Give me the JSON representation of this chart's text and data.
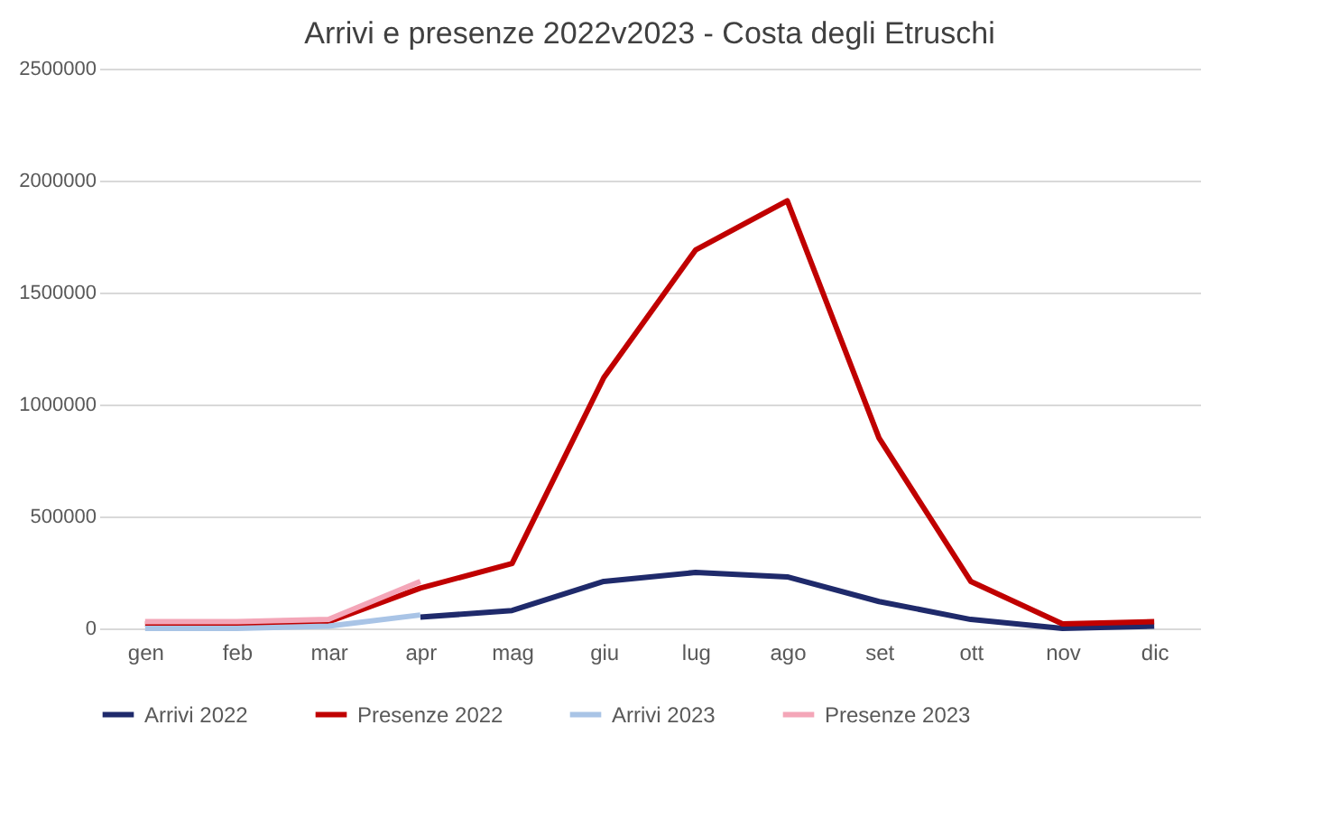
{
  "chart_data": {
    "type": "line",
    "title": "Arrivi e presenze 2022v2023 -  Costa degli Etruschi",
    "categories": [
      "gen",
      "feb",
      "mar",
      "apr",
      "mag",
      "giu",
      "lug",
      "ago",
      "set",
      "ott",
      "nov",
      "dic"
    ],
    "series": [
      {
        "name": "Arrivi 2022",
        "color": "#1f2a6b",
        "values": [
          null,
          null,
          null,
          50000,
          80000,
          210000,
          250000,
          230000,
          120000,
          40000,
          0,
          10000
        ]
      },
      {
        "name": "Presenze 2022",
        "color": "#c00000",
        "values": [
          20000,
          20000,
          30000,
          180000,
          290000,
          1120000,
          1690000,
          1910000,
          850000,
          210000,
          20000,
          30000
        ]
      },
      {
        "name": "Arrivi 2023",
        "color": "#a9c4e6",
        "values": [
          0,
          0,
          10000,
          60000,
          null,
          null,
          null,
          null,
          null,
          null,
          null,
          null
        ]
      },
      {
        "name": "Presenze 2023",
        "color": "#f4a6b8",
        "values": [
          30000,
          30000,
          40000,
          210000,
          null,
          null,
          null,
          null,
          null,
          null,
          null,
          null
        ]
      }
    ],
    "ylim": [
      0,
      2500000
    ],
    "yticks": [
      0,
      500000,
      1000000,
      1500000,
      2000000,
      2500000
    ],
    "grid": "y",
    "legend": "bottom",
    "marker": "none",
    "line_style": "solid"
  }
}
